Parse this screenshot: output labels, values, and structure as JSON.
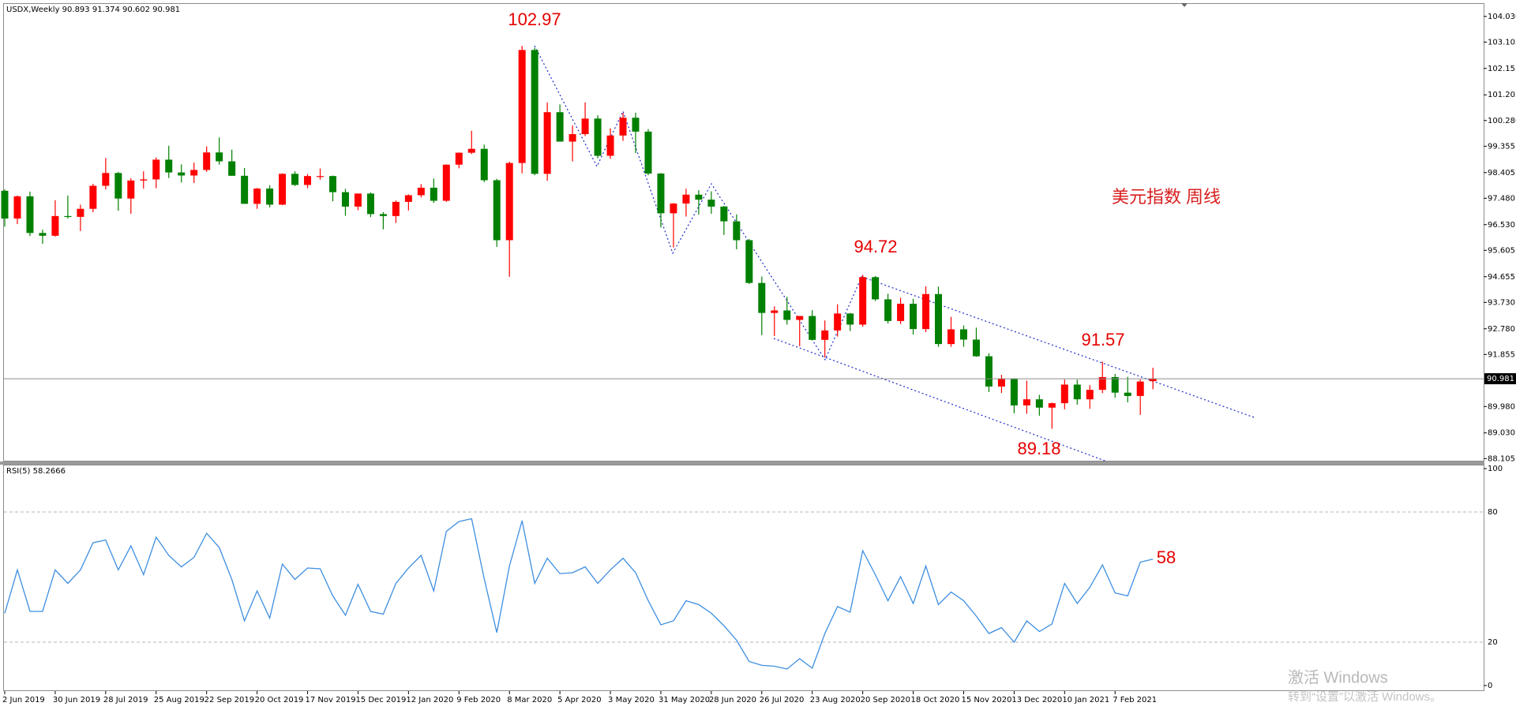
{
  "chart_data": [
    {
      "type": "candlestick",
      "title": "USDX,Weekly  90.893 91.374 90.602 90.981",
      "subtitle": "美元指数 周线",
      "annotations": [
        "102.97",
        "94.72",
        "91.57",
        "89.18"
      ],
      "categories": [
        "2 Jun 2019",
        null,
        null,
        null,
        "30 Jun 2019",
        null,
        null,
        null,
        "28 Jul 2019",
        null,
        null,
        null,
        "25 Aug 2019",
        null,
        null,
        null,
        "22 Sep 2019",
        null,
        null,
        null,
        "20 Oct 2019",
        null,
        null,
        null,
        "17 Nov 2019",
        null,
        null,
        null,
        "15 Dec 2019",
        null,
        null,
        null,
        "12 Jan 2020",
        null,
        null,
        null,
        "9 Feb 2020",
        null,
        null,
        null,
        "8 Mar 2020",
        null,
        null,
        null,
        "5 Apr 2020",
        null,
        null,
        null,
        "3 May 2020",
        null,
        null,
        null,
        "31 May 2020",
        null,
        null,
        null,
        "28 Jun 2020",
        null,
        null,
        null,
        "26 Jul 2020",
        null,
        null,
        null,
        "23 Aug 2020",
        null,
        null,
        null,
        "20 Sep 2020",
        null,
        null,
        null,
        "18 Oct 2020",
        null,
        null,
        null,
        "15 Nov 2020",
        null,
        null,
        null,
        "13 Dec 2020",
        null,
        null,
        null,
        "10 Jan 2021",
        null,
        null,
        null,
        "7 Feb 2021",
        null,
        null,
        null
      ],
      "open": [
        97.75,
        96.75,
        97.55,
        96.23,
        96.13,
        96.84,
        96.81,
        97.1,
        97.93,
        98.39,
        97.47,
        98.12,
        98.16,
        98.87,
        98.41,
        98.3,
        98.5,
        99.13,
        98.81,
        98.29,
        97.28,
        97.83,
        97.25,
        98.36,
        97.96,
        98.28,
        98.28,
        97.7,
        97.18,
        97.65,
        96.91,
        96.84,
        97.35,
        97.59,
        97.86,
        97.39,
        98.69,
        99.12,
        99.26,
        98.13,
        95.97,
        98.75,
        102.82,
        98.36,
        100.58,
        99.52,
        99.79,
        100.35,
        99.01,
        99.74,
        100.38,
        99.88,
        98.37,
        96.94,
        97.29,
        97.61,
        97.43,
        97.18,
        96.65,
        95.97,
        94.43,
        93.35,
        93.44,
        93.1,
        93.24,
        92.38,
        92.72,
        93.33,
        92.93,
        94.64,
        93.84,
        93.06,
        93.68,
        92.77,
        94.03,
        92.23,
        92.76,
        92.39,
        91.79,
        90.7,
        90.98,
        90.02,
        90.24,
        89.94,
        90.1,
        90.77,
        90.24,
        90.58,
        91.04,
        90.48,
        90.36,
        90.893
      ],
      "high": [
        97.8,
        97.58,
        97.72,
        96.35,
        97.41,
        97.58,
        97.25,
        98.0,
        98.93,
        98.43,
        98.2,
        98.45,
        98.95,
        99.37,
        98.7,
        98.76,
        99.35,
        99.67,
        99.23,
        98.57,
        97.85,
        97.95,
        98.38,
        98.45,
        98.35,
        98.55,
        98.3,
        97.82,
        97.65,
        97.69,
        96.98,
        97.4,
        97.62,
        97.99,
        98.19,
        98.7,
        99.13,
        99.91,
        99.41,
        98.18,
        98.8,
        102.97,
        102.9,
        100.93,
        100.86,
        100.1,
        100.93,
        100.47,
        100.0,
        100.55,
        100.56,
        99.97,
        98.39,
        97.31,
        97.82,
        97.77,
        97.73,
        97.21,
        96.9,
        96.01,
        94.66,
        93.59,
        93.93,
        93.24,
        93.45,
        93.08,
        93.66,
        93.35,
        94.72,
        94.68,
        94.04,
        93.9,
        93.86,
        94.31,
        94.3,
        93.21,
        92.9,
        92.82,
        91.9,
        91.12,
        91.0,
        90.91,
        90.4,
        90.12,
        90.95,
        90.95,
        90.75,
        91.6,
        91.15,
        91.05,
        90.95,
        91.374
      ],
      "low": [
        96.46,
        96.55,
        96.12,
        95.84,
        96.1,
        96.75,
        96.3,
        96.98,
        97.8,
        97.03,
        96.92,
        97.83,
        97.84,
        98.21,
        98.05,
        98.03,
        98.43,
        98.69,
        98.29,
        97.28,
        97.1,
        97.15,
        97.23,
        97.92,
        97.84,
        98.15,
        97.37,
        96.85,
        97.05,
        96.8,
        96.36,
        96.59,
        97.04,
        97.51,
        97.31,
        97.35,
        98.56,
        99.07,
        98.06,
        95.73,
        94.65,
        98.38,
        98.31,
        98.11,
        99.52,
        98.81,
        99.72,
        98.92,
        98.9,
        99.55,
        99.11,
        98.31,
        96.43,
        95.71,
        96.82,
        96.89,
        96.92,
        96.16,
        95.64,
        94.39,
        92.55,
        92.52,
        92.93,
        92.15,
        92.36,
        91.75,
        92.5,
        92.7,
        92.85,
        93.78,
        92.97,
        92.95,
        92.57,
        92.66,
        92.13,
        92.13,
        92.13,
        91.77,
        90.5,
        90.47,
        89.74,
        89.72,
        89.65,
        89.18,
        89.88,
        90.05,
        89.9,
        90.46,
        90.3,
        90.13,
        89.68,
        90.602
      ],
      "close": [
        96.75,
        97.55,
        96.23,
        96.13,
        96.84,
        96.81,
        97.1,
        97.93,
        98.39,
        97.47,
        98.12,
        98.16,
        98.87,
        98.41,
        98.3,
        98.5,
        99.13,
        98.81,
        98.29,
        97.28,
        97.83,
        97.25,
        98.36,
        97.96,
        98.28,
        98.28,
        97.7,
        97.18,
        97.65,
        96.91,
        96.84,
        97.35,
        97.59,
        97.86,
        97.39,
        98.69,
        99.12,
        99.26,
        98.13,
        95.97,
        98.75,
        102.82,
        98.36,
        100.58,
        99.52,
        99.79,
        100.35,
        99.01,
        99.74,
        100.38,
        99.88,
        98.37,
        96.94,
        97.29,
        97.61,
        97.43,
        97.18,
        96.65,
        95.97,
        94.43,
        93.35,
        93.44,
        93.1,
        93.24,
        92.38,
        92.72,
        93.33,
        92.93,
        94.64,
        93.84,
        93.06,
        93.68,
        92.77,
        94.03,
        92.23,
        92.76,
        92.39,
        91.79,
        90.7,
        90.98,
        90.02,
        90.24,
        89.94,
        90.1,
        90.77,
        90.24,
        90.58,
        91.04,
        90.48,
        90.36,
        90.88,
        90.981
      ],
      "up_color": "#ff0000",
      "down_color": "#008000",
      "current_price": 90.981,
      "ylim": [
        88.0,
        104.45
      ],
      "yticks": [
        {
          "value": 104.03,
          "label": "104.030"
        },
        103.105,
        102.155,
        101.205,
        {
          "value": 100.28,
          "label": "100.280"
        },
        99.355,
        98.405,
        {
          "value": 97.48,
          "label": "97.480"
        },
        {
          "value": 96.53,
          "label": "96.530"
        },
        95.605,
        94.655,
        {
          "value": 93.73,
          "label": "93.730"
        },
        {
          "value": 92.78,
          "label": "92.780"
        },
        91.855,
        {
          "value": 89.98,
          "label": "89.980"
        },
        {
          "value": 89.03,
          "label": "89.030"
        },
        88.105
      ]
    },
    {
      "type": "line",
      "title": "RSI(5) 58.2666",
      "annotations": [
        "58"
      ],
      "color": "#3d8ee0",
      "values": [
        33.3,
        53.3,
        34.2,
        34.2,
        53.3,
        47.1,
        53.3,
        65.8,
        67.1,
        53.3,
        64.4,
        51.1,
        68.4,
        60,
        54.7,
        59.1,
        70.2,
        63.6,
        48.9,
        29.8,
        43.6,
        31.1,
        56,
        48.9,
        54.2,
        53.8,
        41.3,
        32.4,
        46.7,
        34.2,
        32.9,
        47.1,
        54.2,
        60,
        43.6,
        71.1,
        75.6,
        76.9,
        49.3,
        24.4,
        55.1,
        76,
        47.1,
        58.7,
        51.6,
        52,
        54.7,
        47.1,
        53.3,
        58.7,
        52,
        39.1,
        28,
        29.8,
        39.1,
        37.3,
        33.3,
        27.6,
        20.9,
        11.1,
        9.3,
        8.9,
        7.6,
        12.4,
        8,
        24,
        36.4,
        33.8,
        62.2,
        51.1,
        39.1,
        50.2,
        37.8,
        55.1,
        37.3,
        43.1,
        39.1,
        32,
        24,
        26.7,
        20,
        29.8,
        24.9,
        28.4,
        47.1,
        37.8,
        45.3,
        55.6,
        42.7,
        41.3,
        56.9,
        58.2666
      ],
      "ylim": [
        0,
        100
      ],
      "yticks": [
        0,
        20,
        80,
        100
      ]
    },
    {
      "type": "watermark",
      "lines": [
        "激活 Windows",
        "转到“设置”以激活 Windows。"
      ]
    }
  ]
}
